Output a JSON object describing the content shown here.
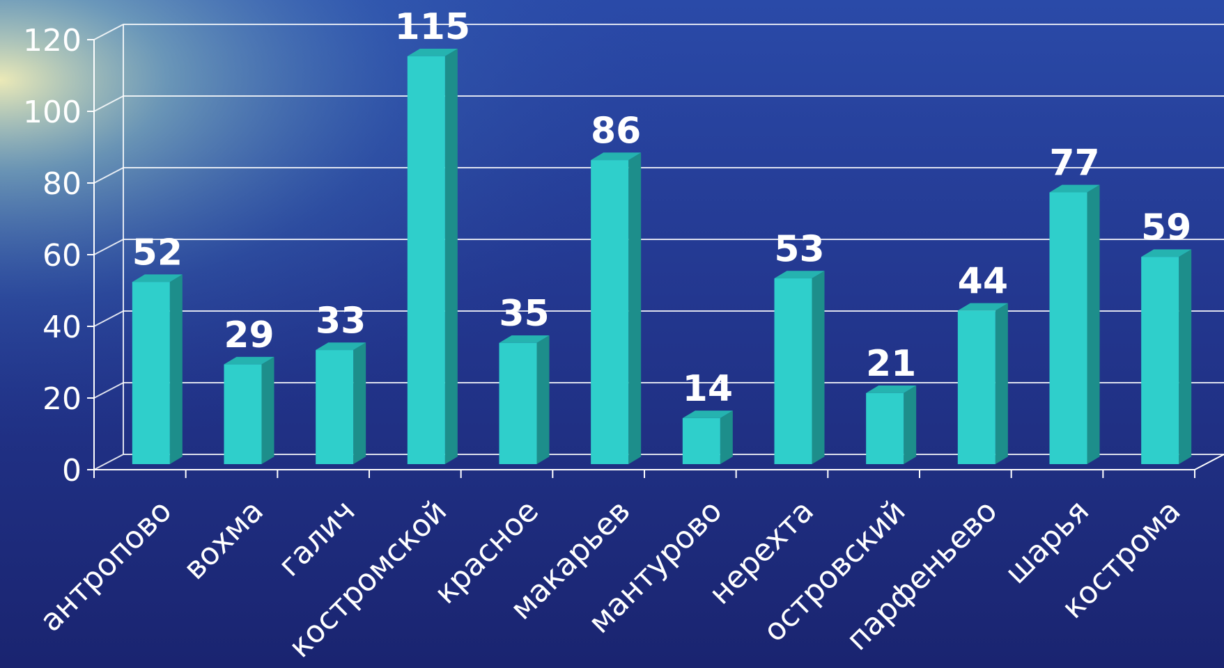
{
  "chart_data": {
    "type": "bar",
    "categories": [
      "антропово",
      "вохма",
      "галич",
      "костромской",
      "красное",
      "макарьев",
      "мантурово",
      "нерехта",
      "островский",
      "парфеньево",
      "шарья",
      "кострома"
    ],
    "values": [
      52,
      29,
      33,
      115,
      35,
      86,
      14,
      53,
      21,
      44,
      77,
      59
    ],
    "data_labels": [
      "52",
      "29",
      "33",
      "115",
      "35",
      "86",
      "14",
      "53",
      "21",
      "44",
      "77",
      "59"
    ],
    "y_ticks": [
      "0",
      "20",
      "40",
      "60",
      "80",
      "100",
      "120"
    ],
    "ylim": [
      0,
      120
    ],
    "grid": true,
    "legend": "none",
    "bar_style": "3d"
  },
  "colors": {
    "bar_front": "#2fcfcb",
    "bar_side": "#1d8e8b",
    "bar_top": "#25b3b0",
    "text": "#ffffff",
    "grid": "#ffffff"
  }
}
